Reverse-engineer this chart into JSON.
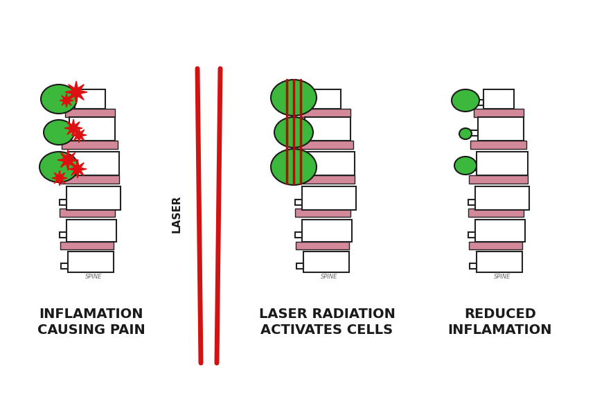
{
  "background_color": "#ffffff",
  "spine_color": "#ffffff",
  "spine_outline_color": "#222222",
  "disc_color": "#d4899a",
  "cell_green": "#3cb83c",
  "star_color": "#dd1111",
  "laser_line_color": "#cc0000",
  "title1": "INFLAMATION\nCAUSING PAIN",
  "title2": "LASER RADIATION\nACTIVATES CELLS",
  "title3": "REDUCED\nINFLAMATION",
  "spine_label": "SPINE",
  "laser_label": "LASER",
  "title_fontsize": 14,
  "spine_label_fontsize": 6,
  "laser_label_fontsize": 11
}
